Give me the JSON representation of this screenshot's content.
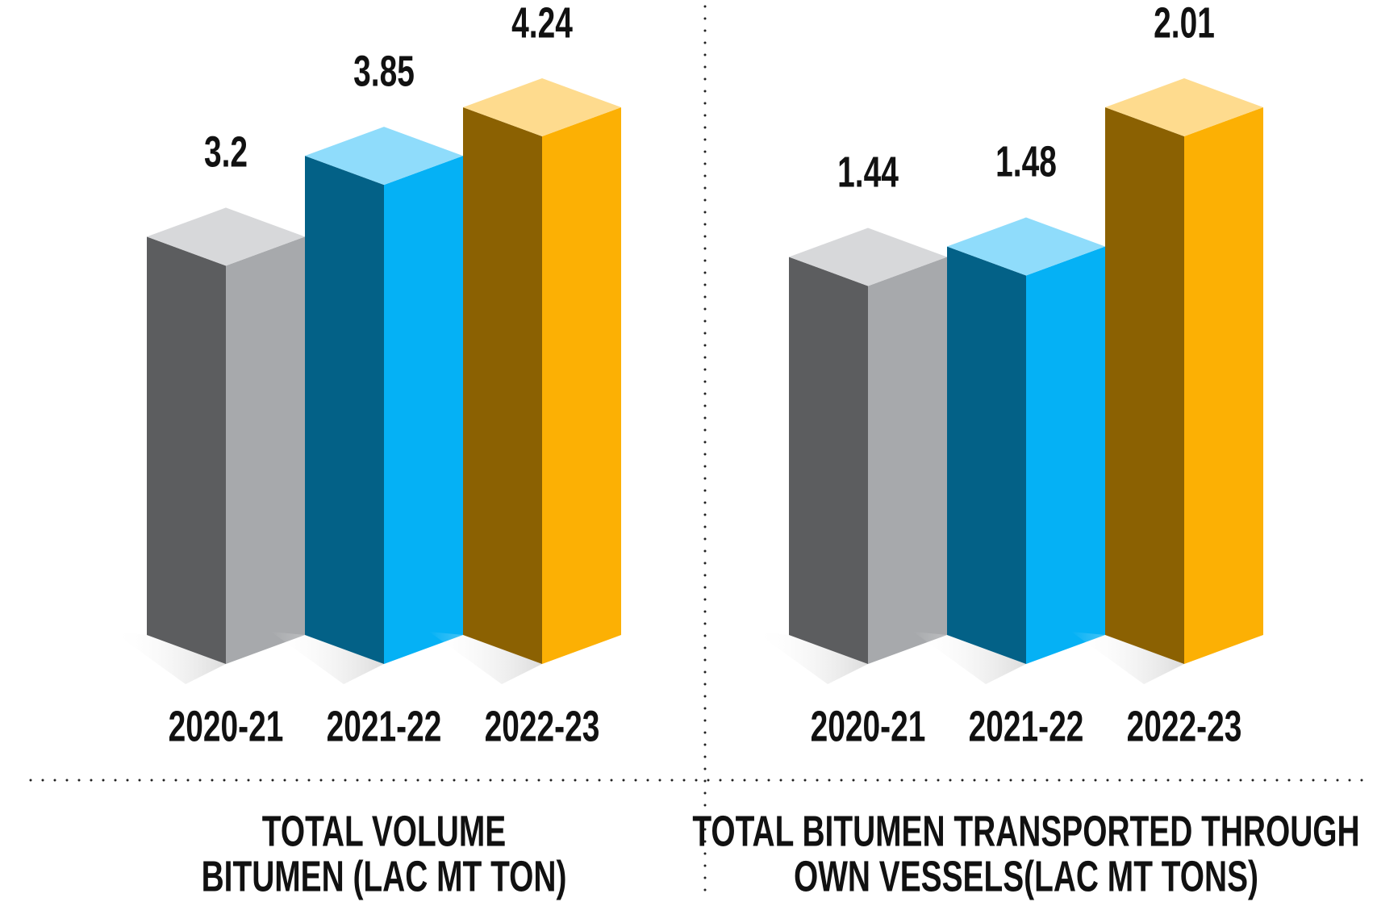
{
  "chart_data": [
    {
      "type": "bar3d",
      "title": [
        "TOTAL VOLUME",
        "BITUMEN (LAC MT TON)"
      ],
      "categories": [
        "2020-21",
        "2021-22",
        "2022-23"
      ],
      "values": [
        3.2,
        3.85,
        4.24
      ],
      "colors": [
        "#a7a9ac",
        "#05b1f5",
        "#fcb004"
      ]
    },
    {
      "type": "bar3d",
      "title": [
        "TOTAL BITUMEN TRANSPORTED THROUGH",
        "OWN VESSELS(LAC MT TONS)"
      ],
      "categories": [
        "2020-21",
        "2021-22",
        "2022-23"
      ],
      "values": [
        1.44,
        1.48,
        2.01
      ],
      "colors": [
        "#a7a9ac",
        "#05b1f5",
        "#fcb004"
      ]
    }
  ]
}
